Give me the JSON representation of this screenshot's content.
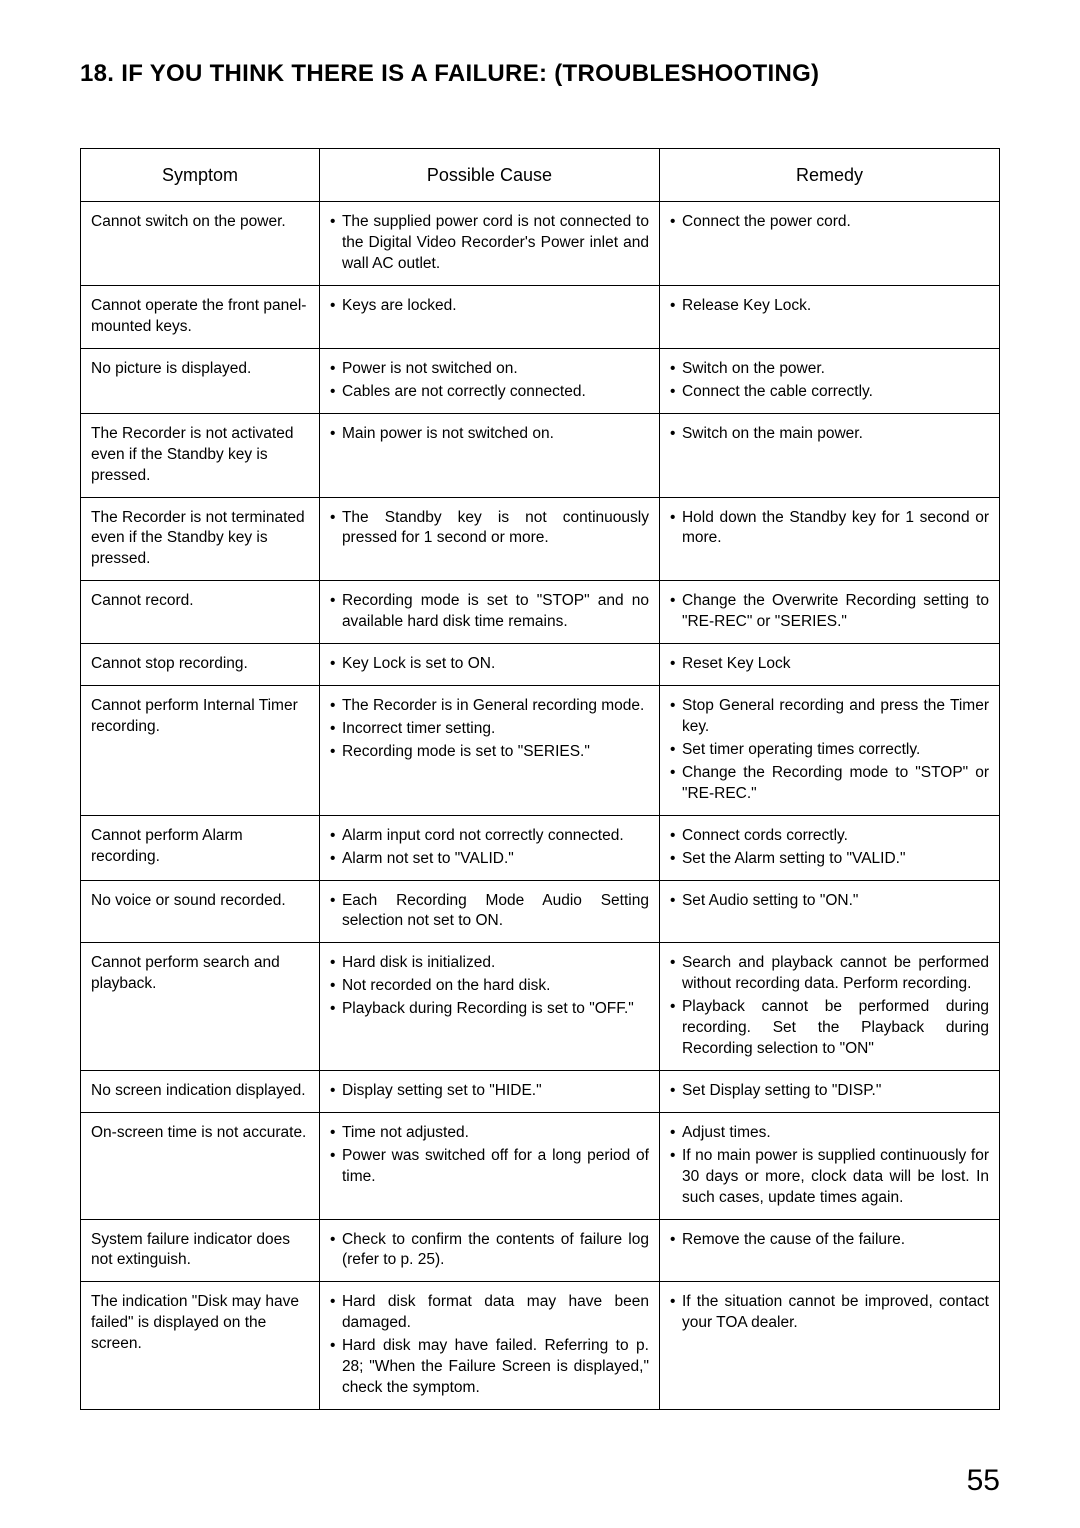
{
  "title": "18. IF YOU THINK THERE IS A FAILURE: (TROUBLESHOOTING)",
  "page_number": "55",
  "headers": {
    "symptom": "Symptom",
    "cause": "Possible Cause",
    "remedy": "Remedy"
  },
  "rows": [
    {
      "symptom": "Cannot switch on the power.",
      "causes": [
        "The supplied power cord is not connected to the Digital Video Recorder's Power inlet and wall AC outlet."
      ],
      "remedies": [
        "Connect the power cord."
      ]
    },
    {
      "symptom": "Cannot operate the front panel-mounted keys.",
      "causes": [
        "Keys are locked."
      ],
      "remedies": [
        "Release Key Lock."
      ]
    },
    {
      "symptom": "No picture is displayed.",
      "causes": [
        "Power is not switched on.",
        "Cables are not correctly connected."
      ],
      "remedies": [
        "Switch on the power.",
        "Connect the cable correctly."
      ]
    },
    {
      "symptom": "The Recorder is not activated even if the Standby key is pressed.",
      "causes": [
        "Main power is not switched on."
      ],
      "remedies": [
        "Switch on the main power."
      ]
    },
    {
      "symptom": "The Recorder is not terminated even if the Standby key is pressed.",
      "causes": [
        "The Standby key is not continuously pressed for 1 second or more."
      ],
      "remedies": [
        "Hold down the Standby key for 1 second or more."
      ]
    },
    {
      "symptom": "Cannot record.",
      "causes": [
        "Recording mode is set to \"STOP\" and no available hard disk time remains."
      ],
      "remedies": [
        "Change the Overwrite Recording setting to \"RE-REC\" or \"SERIES.\""
      ]
    },
    {
      "symptom": "Cannot stop recording.",
      "causes": [
        "Key Lock is set to ON."
      ],
      "remedies": [
        "Reset Key Lock"
      ]
    },
    {
      "symptom": "Cannot perform Internal Timer recording.",
      "causes": [
        "The Recorder is in General recording mode.",
        "Incorrect timer setting.",
        "Recording mode is set to \"SERIES.\""
      ],
      "remedies": [
        "Stop General recording and press the Timer key.",
        "Set timer operating times correctly.",
        "Change the Recording mode to \"STOP\" or \"RE-REC.\""
      ]
    },
    {
      "symptom": "Cannot perform Alarm recording.",
      "causes": [
        "Alarm input cord not correctly connected.",
        "Alarm not set to \"VALID.\""
      ],
      "remedies": [
        "Connect cords correctly.",
        "Set the Alarm setting to \"VALID.\""
      ]
    },
    {
      "symptom": "No voice or sound recorded.",
      "causes": [
        "Each Recording Mode Audio Setting selection not set to ON."
      ],
      "remedies": [
        "Set Audio setting to \"ON.\""
      ]
    },
    {
      "symptom": "Cannot perform search and playback.",
      "causes": [
        "Hard disk is initialized.",
        "Not recorded on the hard disk.",
        "Playback during Recording is set to \"OFF.\""
      ],
      "remedies": [
        "Search and playback cannot be performed without recording data. Perform recording.",
        "Playback cannot be performed during recording. Set the Playback during Recording selection to \"ON\""
      ]
    },
    {
      "symptom": "No screen indication displayed.",
      "causes": [
        "Display setting set to \"HIDE.\""
      ],
      "remedies": [
        "Set Display setting to \"DISP.\""
      ]
    },
    {
      "symptom": "On-screen time is not accurate.",
      "causes": [
        "Time not adjusted.",
        "Power was switched off for a long period of time."
      ],
      "remedies": [
        "Adjust times.",
        "If no main power is supplied continuously for 30 days or more, clock data will be lost. In such cases, update times again."
      ]
    },
    {
      "symptom": "System failure indicator does not extinguish.",
      "causes": [
        "Check to confirm the contents of failure log (refer to p. 25)."
      ],
      "remedies": [
        "Remove the cause of the failure."
      ]
    },
    {
      "symptom": "The indication \"Disk may have failed\" is displayed on the screen.",
      "causes": [
        "Hard disk format data may have been damaged.",
        "Hard disk may have failed. Referring to p. 28; \"When the Failure Screen is displayed,\" check the symptom."
      ],
      "remedies": [
        "If the situation cannot be improved, contact your TOA dealer."
      ]
    }
  ]
}
